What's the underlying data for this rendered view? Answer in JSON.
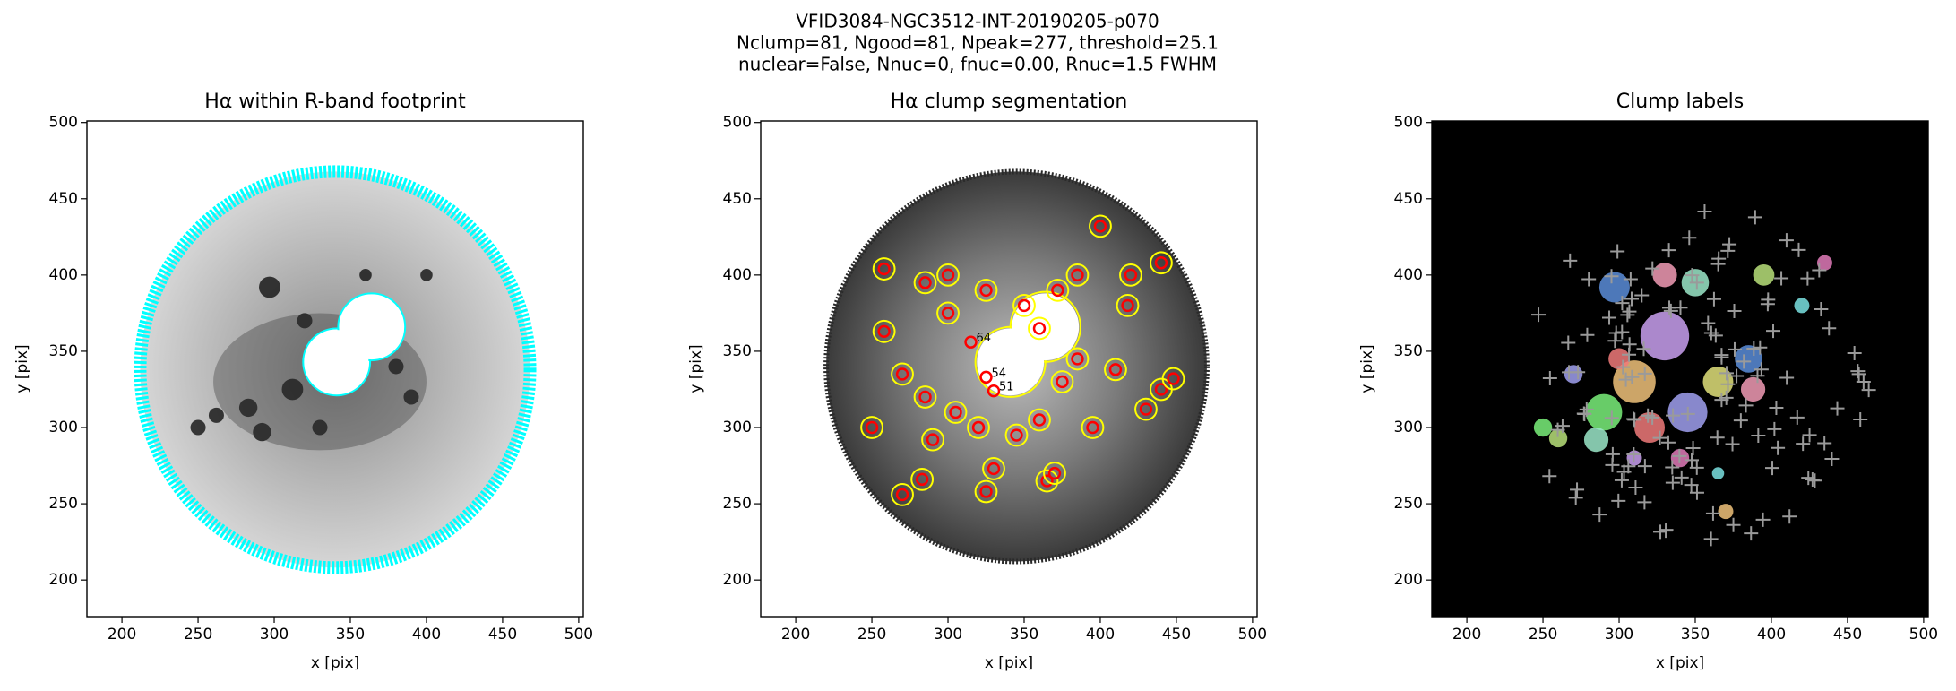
{
  "figure_title": [
    "VFID3084-NGC3512-INT-20190205-p070",
    "Nclump=81, Ngood=81, Npeak=277, threshold=25.1",
    "nuclear=False, Nnuc=0, fnuc=0.00, Rnuc=1.5 FWHM"
  ],
  "chart_data": [
    {
      "type": "image",
      "title": "Hα within R-band footprint",
      "xlabel": "x [pix]",
      "ylabel": "y [pix]",
      "xlim": [
        177,
        503
      ],
      "ylim": [
        176,
        501
      ],
      "xticks": [
        200,
        250,
        300,
        350,
        400,
        450,
        500
      ],
      "yticks": [
        200,
        250,
        300,
        350,
        400,
        450,
        500
      ],
      "background": "#ffffff"
    },
    {
      "type": "image",
      "title": "Hα clump segmentation",
      "xlabel": "x [pix]",
      "ylabel": "y [pix]",
      "xlim": [
        177,
        503
      ],
      "ylim": [
        176,
        501
      ],
      "xticks": [
        200,
        250,
        300,
        350,
        400,
        450,
        500
      ],
      "yticks": [
        200,
        250,
        300,
        350,
        400,
        450,
        500
      ],
      "background": "#ffffff",
      "clumps": {
        "x": [
          325,
          330,
          315
        ],
        "y": [
          333,
          324,
          356
        ],
        "labels": [
          "54",
          "51",
          "64"
        ],
        "color": "#ff0000"
      }
    },
    {
      "type": "image",
      "title": "Clump labels",
      "xlabel": "x [pix]",
      "ylabel": "y [pix]",
      "xlim": [
        177,
        503
      ],
      "ylim": [
        176,
        501
      ],
      "xticks": [
        200,
        250,
        300,
        350,
        400,
        450,
        500
      ],
      "yticks": [
        200,
        250,
        300,
        350,
        400,
        450,
        500
      ],
      "background": "#000000"
    }
  ]
}
